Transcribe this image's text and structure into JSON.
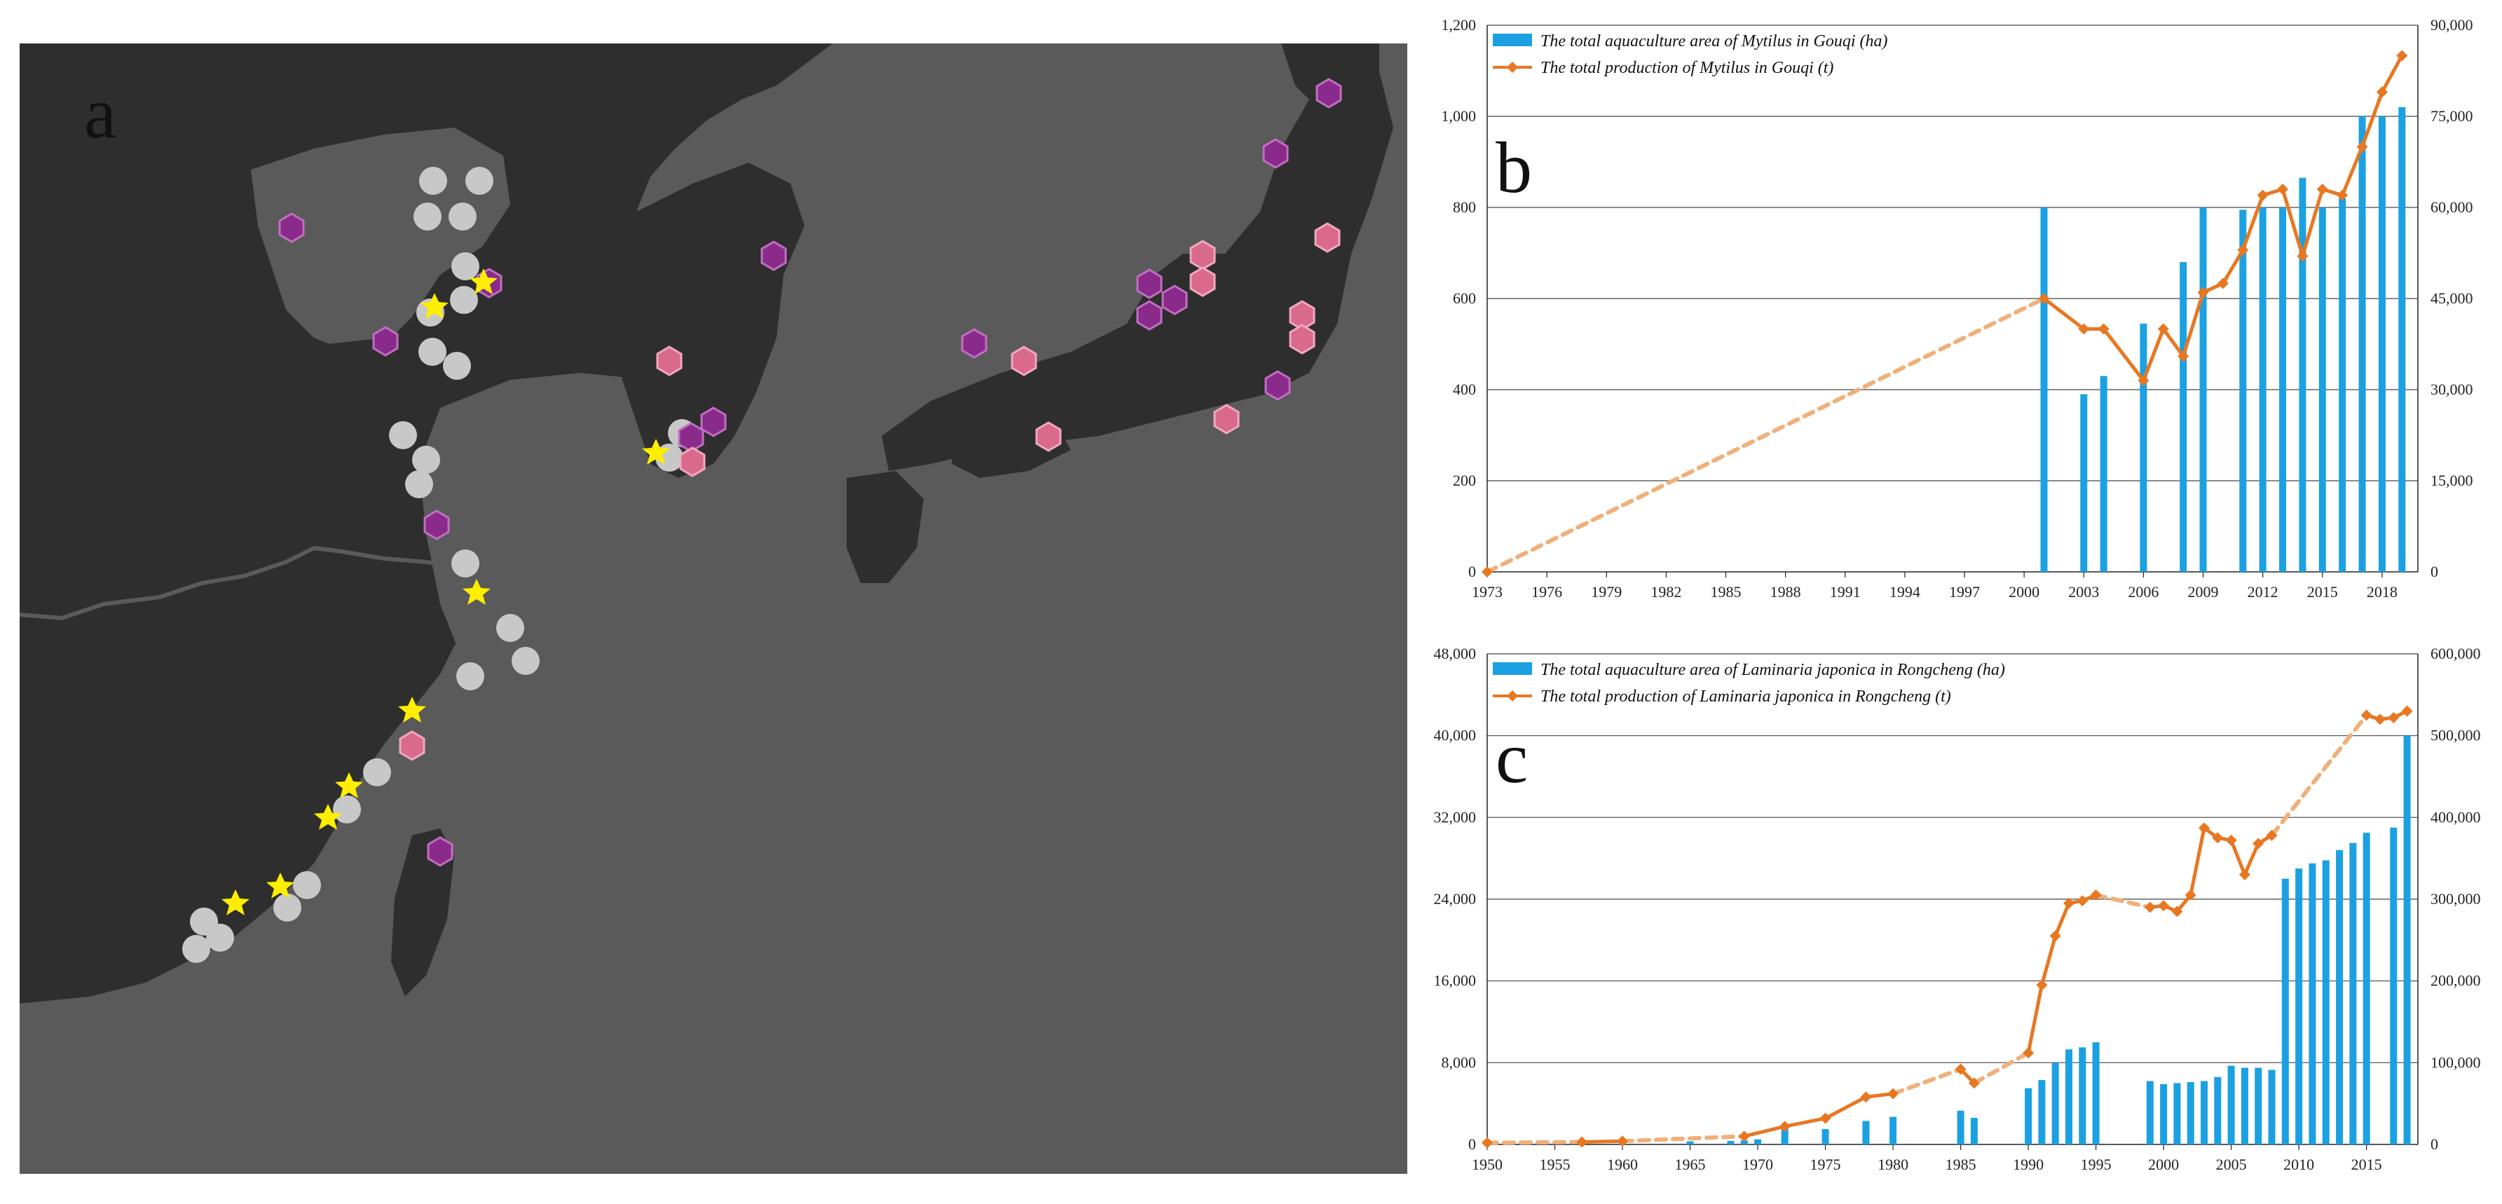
{
  "panels": {
    "a": "a",
    "b": "b",
    "c": "c"
  },
  "colors": {
    "bar": "#1BA1E2",
    "line": "#E87722",
    "line_dashed": "#F0B07A",
    "sea": "#5a5a5a",
    "land": "#2e2e2e",
    "marker_grey": "#c8c8c8",
    "marker_purple": "#8a2a8a",
    "marker_pink": "#d96a8c",
    "star": "#ffee00"
  },
  "chart_data": [
    {
      "type": "bar",
      "id": "b",
      "x_ticks": [
        "1973",
        "1976",
        "1979",
        "1982",
        "1985",
        "1988",
        "1991",
        "1994",
        "1997",
        "2000",
        "2003",
        "2006",
        "2009",
        "2012",
        "2015",
        "2018"
      ],
      "ylim_left": [
        0,
        1200
      ],
      "ylim_right": [
        0,
        90000
      ],
      "y_ticks_left": [
        "0",
        "200",
        "400",
        "600",
        "800",
        "1,000",
        "1,200"
      ],
      "y_ticks_right": [
        "0",
        "15,000",
        "30,000",
        "45,000",
        "60,000",
        "75,000",
        "90,000"
      ],
      "series": [
        {
          "name": "The total aquaculture area of Mytilus in Gouqi (ha)",
          "kind": "bar",
          "axis": "left",
          "x": [
            2001,
            2003,
            2004,
            2006,
            2008,
            2009,
            2011,
            2012,
            2013,
            2014,
            2015,
            2016,
            2017,
            2018,
            2019
          ],
          "values": [
            800,
            390,
            430,
            545,
            680,
            800,
            795,
            800,
            800,
            865,
            800,
            820,
            1000,
            1000,
            1020
          ]
        },
        {
          "name": "The total production of Mytilus in Gouqi (t)",
          "kind": "line",
          "axis": "right",
          "x": [
            1973,
            2001,
            2003,
            2004,
            2006,
            2007,
            2008,
            2009,
            2010,
            2011,
            2012,
            2013,
            2014,
            2015,
            2016,
            2017,
            2018,
            2019
          ],
          "values": [
            0,
            45000,
            40000,
            40000,
            31500,
            40000,
            35500,
            46000,
            47500,
            53000,
            62000,
            63000,
            52000,
            63000,
            62000,
            70000,
            79000,
            85000
          ]
        }
      ]
    },
    {
      "type": "bar",
      "id": "c",
      "x_ticks": [
        "1950",
        "1955",
        "1960",
        "1965",
        "1970",
        "1975",
        "1980",
        "1985",
        "1990",
        "1995",
        "2000",
        "2005",
        "2010",
        "2015"
      ],
      "ylim_left": [
        0,
        48000
      ],
      "ylim_right": [
        0,
        600000
      ],
      "y_ticks_left": [
        "0",
        "8,000",
        "16,000",
        "24,000",
        "32,000",
        "40,000",
        "48,000"
      ],
      "y_ticks_right": [
        "0",
        "100,000",
        "200,000",
        "300,000",
        "400,000",
        "500,000",
        "600,000"
      ],
      "series": [
        {
          "name": "The total aquaculture area of Laminaria japonica in Rongcheng (ha)",
          "kind": "bar",
          "axis": "left",
          "x": [
            1950,
            1954,
            1957,
            1960,
            1965,
            1968,
            1969,
            1970,
            1972,
            1975,
            1978,
            1980,
            1985,
            1986,
            1990,
            1991,
            1992,
            1993,
            1994,
            1995,
            1999,
            2000,
            2001,
            2002,
            2003,
            2004,
            2005,
            2006,
            2007,
            2008,
            2009,
            2010,
            2011,
            2012,
            2013,
            2014,
            2015,
            2017,
            2018
          ],
          "values": [
            150,
            100,
            150,
            250,
            300,
            350,
            400,
            500,
            1800,
            1500,
            2300,
            2700,
            3300,
            2600,
            5500,
            6300,
            8000,
            9300,
            9500,
            10000,
            6200,
            5900,
            6000,
            6100,
            6200,
            6600,
            7700,
            7500,
            7500,
            7300,
            26000,
            27000,
            27500,
            27800,
            28800,
            29500,
            30500,
            31000,
            40000
          ]
        },
        {
          "name": "The total production of Laminaria japonica in Rongcheng (t)",
          "kind": "line",
          "axis": "right",
          "x": [
            1950,
            1957,
            1960,
            1969,
            1972,
            1975,
            1978,
            1980,
            1985,
            1986,
            1990,
            1991,
            1992,
            1993,
            1994,
            1995,
            1999,
            2000,
            2001,
            2002,
            2003,
            2004,
            2005,
            2006,
            2007,
            2008,
            2015,
            2016,
            2017,
            2018
          ],
          "values": [
            2000,
            3000,
            4000,
            10000,
            22000,
            32000,
            58000,
            62000,
            92000,
            75000,
            112000,
            195000,
            255000,
            295000,
            298000,
            305000,
            290000,
            292000,
            285000,
            305000,
            387000,
            375000,
            372000,
            330000,
            368000,
            378000,
            525000,
            520000,
            522000,
            530000
          ]
        }
      ]
    }
  ]
}
